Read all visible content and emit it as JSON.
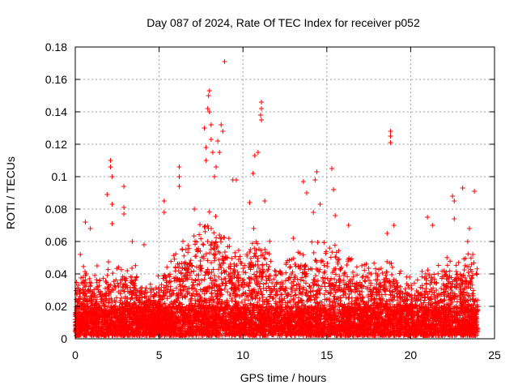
{
  "chart_data": {
    "type": "scatter",
    "title": "Day 087 of 2024, Rate Of TEC Index for receiver p052",
    "xlabel": "GPS time / hours",
    "ylabel": "ROTI / TECUs",
    "xlim": [
      0,
      25
    ],
    "ylim": [
      0,
      0.18
    ],
    "xticks": [
      0,
      5,
      10,
      15,
      20,
      25
    ],
    "xtick_labels": [
      "0",
      "5",
      "10",
      "15",
      "20",
      "25"
    ],
    "yticks": [
      0,
      0.02,
      0.04,
      0.06,
      0.08,
      0.1,
      0.12,
      0.14,
      0.16,
      0.18
    ],
    "ytick_labels": [
      "0",
      "0.02",
      "0.04",
      "0.06",
      "0.08",
      "0.1",
      "0.12",
      "0.14",
      "0.16",
      "0.18"
    ],
    "grid": true,
    "marker": "+",
    "series": [
      {
        "name": "ROTI",
        "color": "#ff0000",
        "points": [
          [
            0.3,
            0.052
          ],
          [
            0.6,
            0.072
          ],
          [
            0.9,
            0.068
          ],
          [
            1.3,
            0.045
          ],
          [
            1.9,
            0.089
          ],
          [
            2.1,
            0.11
          ],
          [
            2.1,
            0.106
          ],
          [
            2.2,
            0.1
          ],
          [
            2.2,
            0.083
          ],
          [
            2.2,
            0.071
          ],
          [
            2.9,
            0.094
          ],
          [
            2.9,
            0.081
          ],
          [
            2.9,
            0.077
          ],
          [
            3.4,
            0.06
          ],
          [
            4.1,
            0.058
          ],
          [
            5.3,
            0.085
          ],
          [
            5.3,
            0.078
          ],
          [
            6.2,
            0.106
          ],
          [
            6.2,
            0.1
          ],
          [
            6.2,
            0.094
          ],
          [
            7.1,
            0.08
          ],
          [
            7.7,
            0.13
          ],
          [
            7.8,
            0.118
          ],
          [
            7.8,
            0.11
          ],
          [
            7.9,
            0.142
          ],
          [
            7.95,
            0.15
          ],
          [
            8.0,
            0.153
          ],
          [
            8.0,
            0.14
          ],
          [
            8.1,
            0.132
          ],
          [
            8.1,
            0.123
          ],
          [
            8.2,
            0.115
          ],
          [
            8.3,
            0.1
          ],
          [
            8.4,
            0.106
          ],
          [
            8.5,
            0.122
          ],
          [
            8.6,
            0.115
          ],
          [
            8.7,
            0.132
          ],
          [
            8.8,
            0.128
          ],
          [
            8.9,
            0.171
          ],
          [
            9.4,
            0.098
          ],
          [
            9.6,
            0.098
          ],
          [
            10.4,
            0.084
          ],
          [
            10.6,
            0.102
          ],
          [
            10.7,
            0.113
          ],
          [
            10.9,
            0.115
          ],
          [
            11.1,
            0.146
          ],
          [
            11.1,
            0.142
          ],
          [
            11.05,
            0.138
          ],
          [
            11.1,
            0.135
          ],
          [
            11.3,
            0.085
          ],
          [
            13.0,
            0.062
          ],
          [
            13.6,
            0.097
          ],
          [
            13.8,
            0.09
          ],
          [
            14.2,
            0.078
          ],
          [
            14.3,
            0.098
          ],
          [
            14.4,
            0.103
          ],
          [
            14.6,
            0.083
          ],
          [
            15.3,
            0.105
          ],
          [
            15.4,
            0.092
          ],
          [
            15.5,
            0.076
          ],
          [
            16.3,
            0.07
          ],
          [
            18.6,
            0.065
          ],
          [
            18.8,
            0.128
          ],
          [
            18.8,
            0.125
          ],
          [
            18.8,
            0.121
          ],
          [
            19.0,
            0.07
          ],
          [
            21.0,
            0.075
          ],
          [
            21.3,
            0.07
          ],
          [
            22.5,
            0.088
          ],
          [
            22.6,
            0.085
          ],
          [
            22.6,
            0.074
          ],
          [
            23.1,
            0.093
          ],
          [
            23.5,
            0.068
          ],
          [
            23.8,
            0.091
          ],
          [
            23.7,
            0.052
          ],
          [
            23.4,
            0.06
          ]
        ],
        "baseline_noise": {
          "description": "dense cloud of ROTI samples between 0.002 and ~0.05 TECU for the full 0–24 h span",
          "x_range": [
            0,
            24
          ],
          "y_min": 0.002,
          "envelope": [
            [
              0.0,
              0.03
            ],
            [
              0.5,
              0.04
            ],
            [
              1.0,
              0.035
            ],
            [
              1.5,
              0.034
            ],
            [
              2.0,
              0.045
            ],
            [
              2.5,
              0.04
            ],
            [
              3.0,
              0.042
            ],
            [
              3.5,
              0.04
            ],
            [
              4.0,
              0.032
            ],
            [
              4.5,
              0.03
            ],
            [
              5.0,
              0.036
            ],
            [
              5.5,
              0.042
            ],
            [
              6.0,
              0.048
            ],
            [
              6.5,
              0.052
            ],
            [
              7.0,
              0.055
            ],
            [
              7.5,
              0.062
            ],
            [
              8.0,
              0.07
            ],
            [
              8.5,
              0.066
            ],
            [
              9.0,
              0.058
            ],
            [
              9.5,
              0.055
            ],
            [
              10.0,
              0.056
            ],
            [
              10.5,
              0.058
            ],
            [
              11.0,
              0.06
            ],
            [
              11.5,
              0.052
            ],
            [
              12.0,
              0.045
            ],
            [
              12.5,
              0.046
            ],
            [
              13.0,
              0.048
            ],
            [
              13.5,
              0.05
            ],
            [
              14.0,
              0.052
            ],
            [
              14.5,
              0.054
            ],
            [
              15.0,
              0.052
            ],
            [
              15.5,
              0.05
            ],
            [
              16.0,
              0.048
            ],
            [
              16.5,
              0.044
            ],
            [
              17.0,
              0.04
            ],
            [
              17.5,
              0.04
            ],
            [
              18.0,
              0.042
            ],
            [
              18.5,
              0.046
            ],
            [
              19.0,
              0.044
            ],
            [
              19.5,
              0.034
            ],
            [
              20.0,
              0.032
            ],
            [
              20.5,
              0.036
            ],
            [
              21.0,
              0.04
            ],
            [
              21.5,
              0.044
            ],
            [
              22.0,
              0.044
            ],
            [
              22.5,
              0.046
            ],
            [
              23.0,
              0.044
            ],
            [
              23.5,
              0.046
            ],
            [
              24.0,
              0.04
            ]
          ]
        }
      }
    ]
  }
}
